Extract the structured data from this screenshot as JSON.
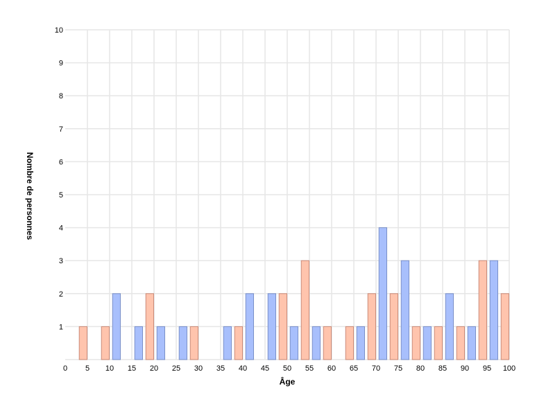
{
  "chart_data": {
    "type": "bar",
    "title": "",
    "xlabel": "Âge",
    "ylabel": "Nombre de personnes",
    "xlim": [
      0,
      100
    ],
    "ylim": [
      0,
      10
    ],
    "x_ticks": [
      0,
      5,
      10,
      15,
      20,
      25,
      30,
      35,
      40,
      45,
      50,
      55,
      60,
      65,
      70,
      75,
      80,
      85,
      90,
      95,
      100
    ],
    "y_ticks": [
      1,
      2,
      3,
      4,
      5,
      6,
      7,
      8,
      9,
      10
    ],
    "grid": true,
    "bin_starts": [
      0,
      5,
      10,
      15,
      20,
      25,
      30,
      35,
      40,
      45,
      50,
      55,
      60,
      65,
      70,
      75,
      80,
      85,
      90,
      95
    ],
    "bin_width": 5,
    "series": [
      {
        "color": "#a8bffc",
        "stroke": "#7a90c8",
        "values": [
          0,
          0,
          2,
          1,
          1,
          1,
          0,
          1,
          2,
          2,
          1,
          1,
          0,
          1,
          4,
          3,
          1,
          2,
          1,
          3
        ]
      },
      {
        "color": "#ffc4ad",
        "stroke": "#c98a78",
        "values": [
          1,
          1,
          0,
          2,
          0,
          1,
          0,
          1,
          0,
          2,
          3,
          1,
          1,
          2,
          2,
          1,
          1,
          1,
          3,
          2
        ]
      }
    ]
  }
}
